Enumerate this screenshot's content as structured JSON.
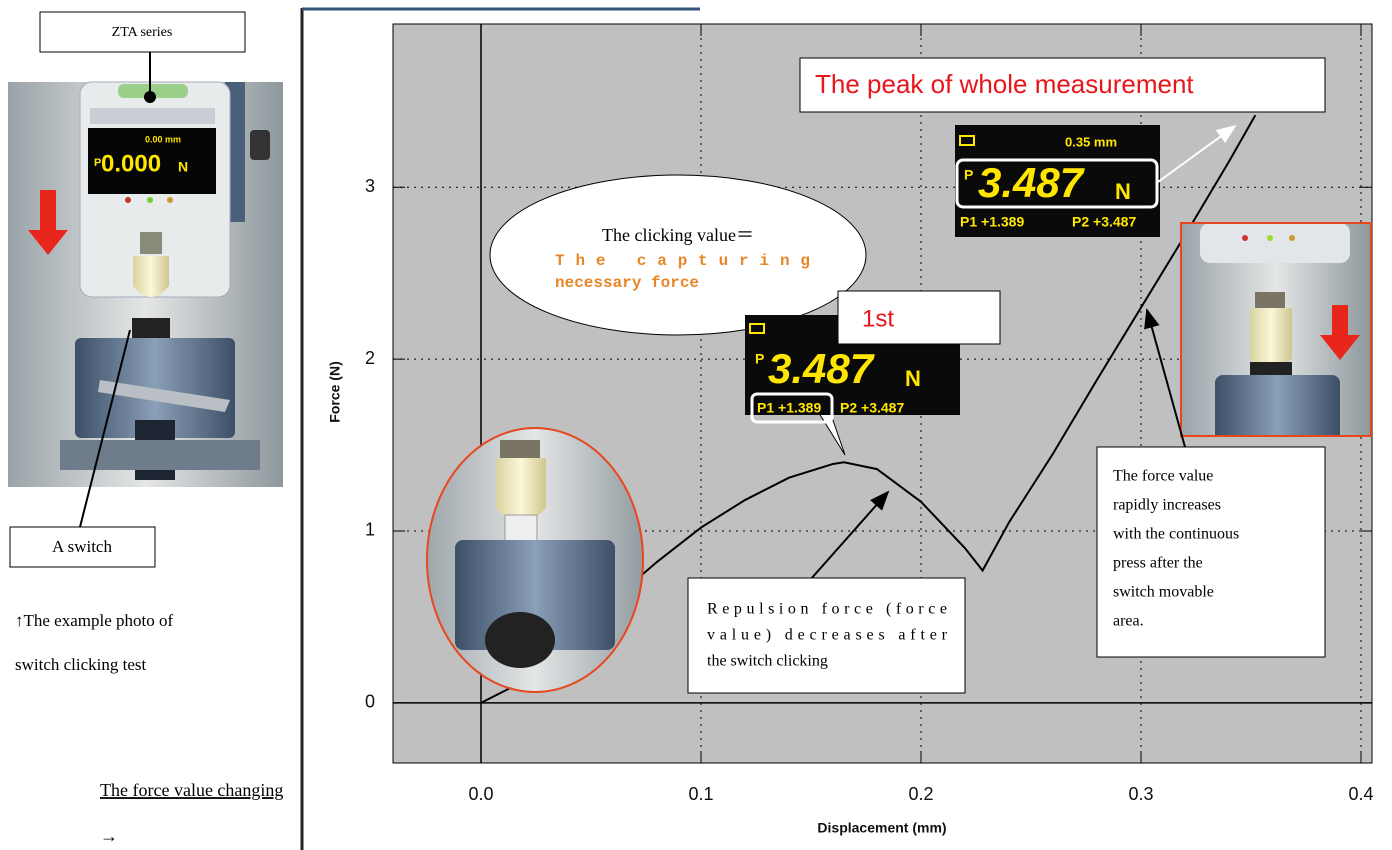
{
  "chart_data": {
    "type": "line",
    "x": [
      0,
      0.02,
      0.04,
      0.06,
      0.08,
      0.1,
      0.12,
      0.14,
      0.16,
      0.165,
      0.18,
      0.2,
      0.22,
      0.228,
      0.24,
      0.26,
      0.28,
      0.3,
      0.32,
      0.34,
      0.352
    ],
    "values": [
      0,
      0.13,
      0.36,
      0.6,
      0.82,
      1.02,
      1.18,
      1.31,
      1.39,
      1.4,
      1.36,
      1.17,
      0.9,
      0.77,
      1.05,
      1.45,
      1.88,
      2.3,
      2.72,
      3.15,
      3.42
    ],
    "color": "#000000",
    "xlabel": "Displacement (mm)",
    "ylabel": "Force (N)",
    "xlim": [
      -0.04,
      0.405
    ],
    "ylim": [
      -0.35,
      3.95
    ],
    "xticks": [
      {
        "value": 0,
        "label": "0.0"
      },
      0.1,
      0.2,
      0.3,
      0.4
    ],
    "yticks": [
      0,
      1,
      2,
      3
    ],
    "grid": true,
    "annotations": {
      "peak": "The peak of whole measurement",
      "first": "1st",
      "bubble": [
        "The clicking value＝",
        "The capturing",
        "necessary force"
      ],
      "repulsion": [
        "Repulsion force (force",
        "value) decreases after",
        "the switch clicking"
      ],
      "increase": [
        "The force value",
        "rapidly increases",
        "with the continuous",
        "press after the",
        "switch movable",
        "area."
      ]
    },
    "displays": [
      {
        "distance": "0.35 mm",
        "prefix": "P",
        "reading": "3.487",
        "unit": "N",
        "p1": "P1 +1.389",
        "p2": "P2 +3.487"
      },
      {
        "prefix": "P",
        "reading": "3.487",
        "unit": "N",
        "p1": "P1 +1.389",
        "p2": "P2 +3.487"
      }
    ]
  },
  "photo": {
    "device_label": "ZTA series",
    "switch_label": "A switch",
    "distance": "0.00 mm",
    "prefix": "P",
    "reading": "0.000",
    "unit": "N",
    "caption": [
      "↑The example photo of",
      "switch clicking test"
    ]
  },
  "footer": {
    "text": "The force value changing",
    "arrow": "→"
  }
}
